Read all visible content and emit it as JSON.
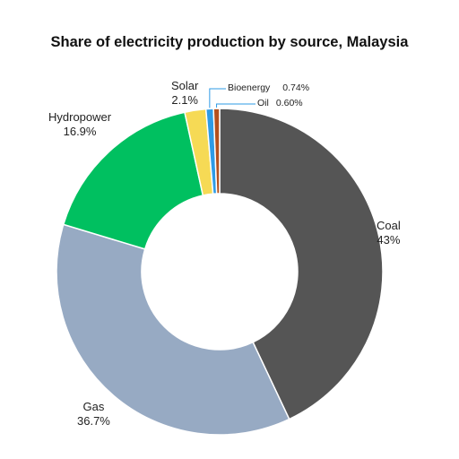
{
  "chart_data": {
    "type": "pie",
    "title": "Share of electricity production by source, Malaysia",
    "slices": [
      {
        "name": "Coal",
        "label": "43%",
        "value": 43.0,
        "color": "#555555"
      },
      {
        "name": "Gas",
        "label": "36.7%",
        "value": 36.7,
        "color": "#97AAC3"
      },
      {
        "name": "Hydropower",
        "label": "16.9%",
        "value": 16.9,
        "color": "#00C060"
      },
      {
        "name": "Solar",
        "label": "2.1%",
        "value": 2.1,
        "color": "#F6DA55"
      },
      {
        "name": "Bioenergy",
        "label": "0.74%",
        "value": 0.74,
        "color": "#2E9BE6"
      },
      {
        "name": "Oil",
        "label": "0.60%",
        "value": 0.6,
        "color": "#B4501E"
      }
    ]
  }
}
